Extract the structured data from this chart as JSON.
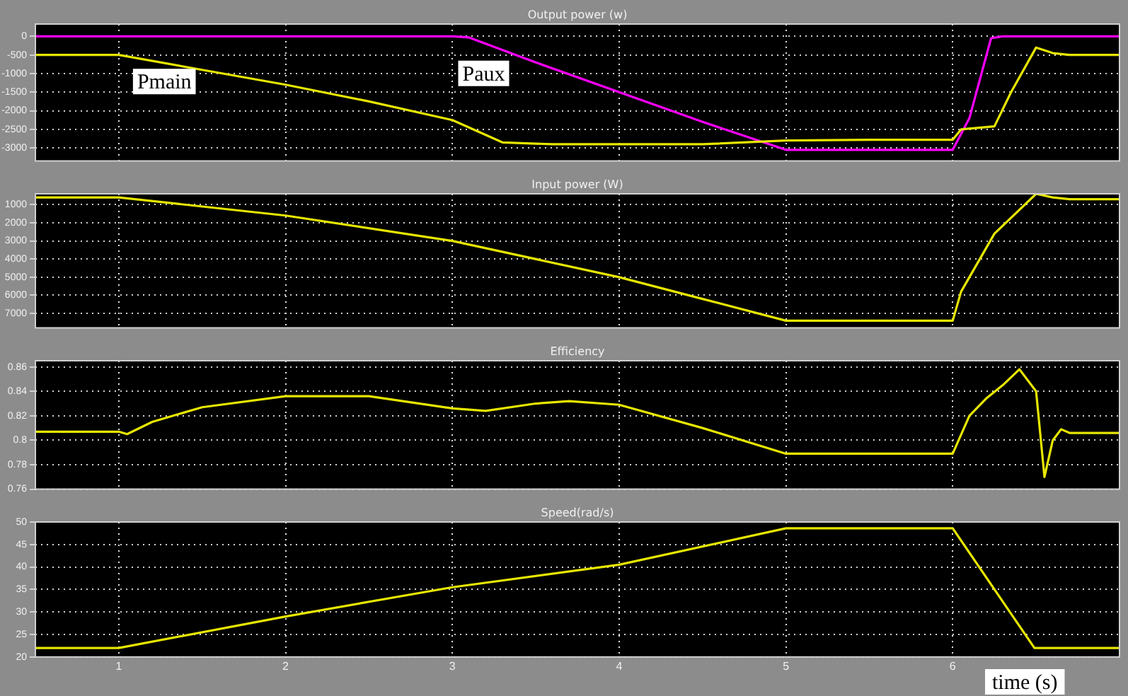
{
  "chart_data": [
    {
      "type": "line",
      "title": "Output power (w)",
      "xlim": [
        0.5,
        7
      ],
      "xticks": [
        1,
        2,
        3,
        4,
        5,
        6
      ],
      "ylim": [
        -3350,
        330
      ],
      "yticks": [
        0,
        -500,
        -1000,
        -1500,
        -2000,
        -2500,
        -3000
      ],
      "grid": true,
      "tick_labels": "y",
      "series": [
        {
          "name": "Pmain",
          "color": "#e6e600",
          "x": [
            0.5,
            1,
            1.5,
            2,
            2.5,
            3,
            3.3,
            3.6,
            4,
            4.5,
            5,
            5.5,
            6,
            6.05,
            6.25,
            6.35,
            6.5,
            6.6,
            6.7,
            7
          ],
          "values": [
            -500,
            -500,
            -900,
            -1300,
            -1750,
            -2250,
            -2850,
            -2900,
            -2900,
            -2900,
            -2800,
            -2780,
            -2780,
            -2500,
            -2420,
            -1500,
            -300,
            -450,
            -500,
            -500
          ]
        },
        {
          "name": "Paux",
          "color": "#ff00ff",
          "x": [
            0.5,
            3,
            3.1,
            3.5,
            4,
            4.5,
            5,
            5.5,
            6,
            6.1,
            6.23,
            6.3,
            7
          ],
          "values": [
            0,
            0,
            -30,
            -700,
            -1500,
            -2300,
            -3050,
            -3050,
            -3050,
            -2200,
            -50,
            0,
            0
          ]
        }
      ]
    },
    {
      "type": "line",
      "title": "Input power (W)",
      "xlim": [
        0.5,
        7
      ],
      "xticks": [
        1,
        2,
        3,
        4,
        5,
        6
      ],
      "ylim": [
        7800,
        400
      ],
      "yticks": [
        1000,
        2000,
        3000,
        4000,
        5000,
        6000,
        7000
      ],
      "grid": true,
      "tick_labels": "y",
      "series": [
        {
          "color": "#e6e600",
          "x": [
            0.5,
            1,
            2,
            3,
            3.4,
            4,
            4.5,
            5,
            6,
            6.05,
            6.25,
            6.5,
            6.6,
            6.7,
            7
          ],
          "values": [
            600,
            600,
            1600,
            3000,
            3800,
            5000,
            6200,
            7400,
            7400,
            5800,
            2600,
            400,
            600,
            700,
            700
          ]
        }
      ]
    },
    {
      "type": "line",
      "title": "Efficiency",
      "xlim": [
        0.5,
        7
      ],
      "xticks": [
        1,
        2,
        3,
        4,
        5,
        6
      ],
      "ylim": [
        0.76,
        0.865
      ],
      "yticks": [
        0.86,
        0.84,
        0.82,
        0.8,
        0.78,
        0.76
      ],
      "grid": true,
      "tick_labels": "y",
      "series": [
        {
          "color": "#e6e600",
          "x": [
            0.5,
            1,
            1.05,
            1.2,
            1.5,
            2,
            2.5,
            3,
            3.2,
            3.5,
            3.7,
            4,
            4.5,
            5,
            5.5,
            6,
            6.1,
            6.2,
            6.3,
            6.4,
            6.5,
            6.55,
            6.6,
            6.65,
            6.7,
            7
          ],
          "values": [
            0.807,
            0.807,
            0.805,
            0.815,
            0.827,
            0.836,
            0.836,
            0.826,
            0.824,
            0.83,
            0.832,
            0.829,
            0.81,
            0.789,
            0.789,
            0.789,
            0.82,
            0.834,
            0.845,
            0.858,
            0.84,
            0.77,
            0.8,
            0.809,
            0.806,
            0.806
          ]
        }
      ]
    },
    {
      "type": "line",
      "title": "Speed(rad/s)",
      "xlabel": "time (s)",
      "xlim": [
        0.5,
        7
      ],
      "xticks": [
        1,
        2,
        3,
        4,
        5,
        6
      ],
      "ylim": [
        20,
        50
      ],
      "yticks": [
        50,
        45,
        40,
        35,
        30,
        25,
        20
      ],
      "grid": true,
      "series": [
        {
          "color": "#e6e600",
          "x": [
            0.5,
            1,
            2,
            3,
            4,
            5,
            6,
            6.49,
            7
          ],
          "values": [
            22,
            22,
            29,
            35.5,
            40.5,
            48.6,
            48.6,
            22,
            22
          ]
        }
      ]
    }
  ]
}
